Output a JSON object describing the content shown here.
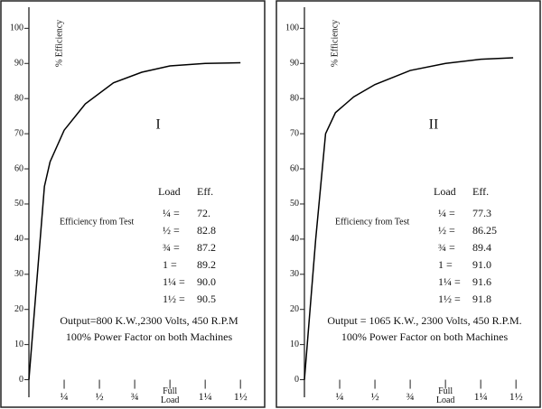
{
  "chart_data": [
    {
      "type": "line",
      "title": "I",
      "y_label": "% Efficiency",
      "xlim": [
        0,
        1.55
      ],
      "ylim": [
        -5,
        106
      ],
      "xticks": [
        {
          "value": 0.25,
          "label": "¼"
        },
        {
          "value": 0.5,
          "label": "½"
        },
        {
          "value": 0.75,
          "label": "¾"
        },
        {
          "value": 1,
          "label": "Full Load"
        },
        {
          "value": 1.25,
          "label": "1¼"
        },
        {
          "value": 1.5,
          "label": "1½"
        }
      ],
      "yticks": [
        0,
        10,
        20,
        30,
        40,
        50,
        60,
        70,
        80,
        90,
        100
      ],
      "series": [
        {
          "color": "#000000",
          "x": [
            0,
            0.06,
            0.11,
            0.15,
            0.25,
            0.4,
            0.6,
            0.8,
            1.0,
            1.25,
            1.5
          ],
          "values": [
            0,
            30,
            55,
            62,
            71,
            78.5,
            84.5,
            87.5,
            89.3,
            90,
            90.2
          ]
        }
      ],
      "test_label": "Efficiency from Test",
      "table": {
        "header": [
          "Load",
          "Eff."
        ],
        "rows": [
          [
            "¼ =",
            "72."
          ],
          [
            "½ =",
            "82.8"
          ],
          [
            "¾ =",
            "87.2"
          ],
          [
            "1 =",
            "89.2"
          ],
          [
            "1¼ =",
            "90.0"
          ],
          [
            "1½ =",
            "90.5"
          ]
        ]
      },
      "notes": [
        "Output=800 K.W.,2300 Volts, 450 R.P.M",
        "100% Power Factor on both Machines"
      ]
    },
    {
      "type": "line",
      "title": "II",
      "y_label": "% Efficiency",
      "xlim": [
        0,
        1.55
      ],
      "ylim": [
        -5,
        106
      ],
      "xticks": [
        {
          "value": 0.25,
          "label": "¼"
        },
        {
          "value": 0.5,
          "label": "½"
        },
        {
          "value": 0.75,
          "label": "¾"
        },
        {
          "value": 1,
          "label": "Full Load"
        },
        {
          "value": 1.25,
          "label": "1¼"
        },
        {
          "value": 1.5,
          "label": "1½"
        }
      ],
      "yticks": [
        0,
        10,
        20,
        30,
        40,
        50,
        60,
        70,
        80,
        90,
        100
      ],
      "series": [
        {
          "color": "#000000",
          "x": [
            0,
            0.08,
            0.15,
            0.22,
            0.35,
            0.5,
            0.75,
            1.0,
            1.25,
            1.48
          ],
          "values": [
            0,
            40,
            70,
            76,
            80.5,
            84,
            88,
            90,
            91.2,
            91.6
          ]
        }
      ],
      "test_label": "Efficiency from Test",
      "table": {
        "header": [
          "Load",
          "Eff."
        ],
        "rows": [
          [
            "¼ =",
            "77.3"
          ],
          [
            "½ =",
            "86.25"
          ],
          [
            "¾ =",
            "89.4"
          ],
          [
            "1 =",
            "91.0"
          ],
          [
            "1¼ =",
            "91.6"
          ],
          [
            "1½ =",
            "91.8"
          ]
        ]
      },
      "notes": [
        "Output = 1065 K.W., 2300 Volts, 450 R.P.M.",
        "100% Power Factor on both Machines"
      ]
    }
  ]
}
